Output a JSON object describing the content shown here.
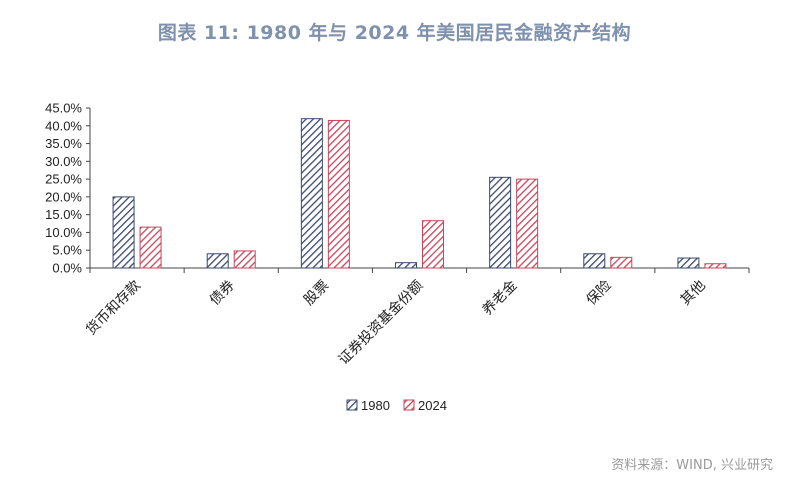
{
  "header": {
    "title": "图表 11: 1980 年与 2024 年美国居民金融资产结构"
  },
  "footer": {
    "source": "资料来源：WIND, 兴业研究"
  },
  "colors": {
    "title": "#7f92ad",
    "series_1980": "#3b4a6b",
    "series_2024": "#c8455a"
  },
  "chart_data": {
    "type": "bar",
    "title": "",
    "xlabel": "",
    "ylabel": "",
    "ylim": [
      0,
      45
    ],
    "yticks": [
      "0.0%",
      "5.0%",
      "10.0%",
      "15.0%",
      "20.0%",
      "25.0%",
      "30.0%",
      "35.0%",
      "40.0%",
      "45.0%"
    ],
    "categories": [
      "货币和存款",
      "债券",
      "股票",
      "证券投资基金份额",
      "养老金",
      "保险",
      "其他"
    ],
    "series": [
      {
        "name": "1980",
        "values": [
          20.0,
          4.0,
          42.0,
          1.5,
          25.5,
          4.0,
          2.8
        ]
      },
      {
        "name": "2024",
        "values": [
          11.5,
          4.8,
          41.5,
          13.3,
          25.0,
          3.0,
          1.2
        ]
      }
    ],
    "legend": "bottom-center",
    "grid": false
  }
}
